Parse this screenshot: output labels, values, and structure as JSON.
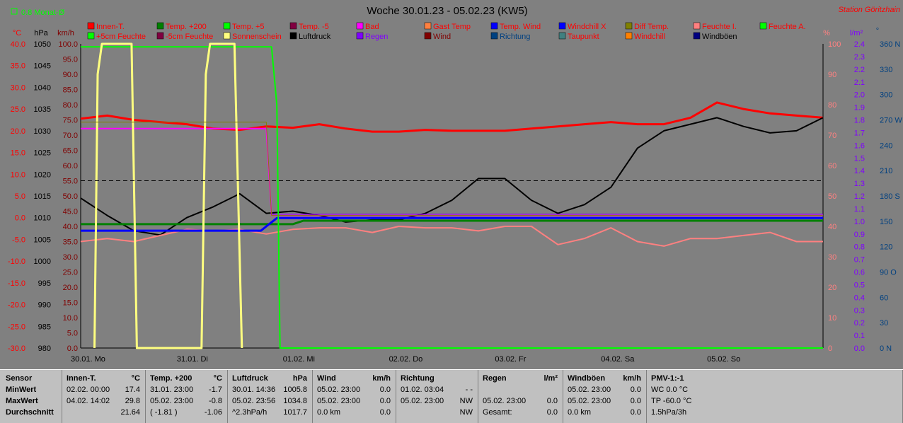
{
  "header": {
    "legend_left": "0.8 Monat-Ø",
    "title": "Woche 30.01.23 - 05.02.23 (KW5)",
    "station": "Station Göritzhain"
  },
  "colors": {
    "background": "#808080",
    "innen_temp": "#ff0000",
    "luftdruck": "#000000",
    "sonnenschein": "#ffff80",
    "feuchte_a": "#00ff00",
    "temp_wind": "#0000ff",
    "feuchte_i": "#ff8080",
    "temp_200": "#008000",
    "bad": "#ff00ff",
    "richtung": "#004080",
    "regen": "#8000ff"
  },
  "legend": [
    {
      "label": "Innen-T.",
      "color": "#ff0000",
      "text_color": "#ff0000"
    },
    {
      "label": "Temp. +200",
      "color": "#008000",
      "text_color": "#ff0000"
    },
    {
      "label": "Temp. +5",
      "color": "#00ff00",
      "text_color": "#ff0000"
    },
    {
      "label": "Temp. -5",
      "color": "#800040",
      "text_color": "#ff0000"
    },
    {
      "label": "Bad",
      "color": "#ff00ff",
      "text_color": "#ff0000"
    },
    {
      "label": "Gast Temp",
      "color": "#ff8040",
      "text_color": "#ff0000"
    },
    {
      "label": "Temp. Wind",
      "color": "#0000ff",
      "text_color": "#ff0000"
    },
    {
      "label": "Windchill X",
      "color": "#0000ff",
      "text_color": "#ff0000"
    },
    {
      "label": "Diff Temp.",
      "color": "#808000",
      "text_color": "#ff0000"
    },
    {
      "label": "Feuchte I.",
      "color": "#ff8080",
      "text_color": "#ff0000"
    },
    {
      "label": "Feuchte A.",
      "color": "#00ff00",
      "text_color": "#ff0000"
    },
    {
      "label": "+5cm Feuchte",
      "color": "#00ff00",
      "text_color": "#ff0000"
    },
    {
      "label": "-5cm Feuchte",
      "color": "#800040",
      "text_color": "#ff0000"
    },
    {
      "label": "Sonnenschein",
      "color": "#ffff80",
      "text_color": "#ff0000"
    },
    {
      "label": "Luftdruck",
      "color": "#000000",
      "text_color": "#000000"
    },
    {
      "label": "Regen",
      "color": "#8000ff",
      "text_color": "#8000ff"
    },
    {
      "label": "Wind",
      "color": "#800000",
      "text_color": "#800000"
    },
    {
      "label": "Richtung",
      "color": "#004080",
      "text_color": "#004080"
    },
    {
      "label": "Taupunkt",
      "color": "#408080",
      "text_color": "#ff0000"
    },
    {
      "label": "Windchill",
      "color": "#ff8000",
      "text_color": "#ff0000"
    },
    {
      "label": "Windböen",
      "color": "#000080",
      "text_color": "#000000"
    }
  ],
  "chart_data": {
    "type": "line",
    "x_ticks": [
      "30.01.  Mo",
      "31.01.  Di",
      "01.02.  Mi",
      "02.02.  Do",
      "03.02.  Fr",
      "04.02.  Sa",
      "05.02.  So"
    ],
    "axes": {
      "temp_c": {
        "unit": "°C",
        "min": -30,
        "max": 40,
        "ticks": [
          "40.0",
          "35.0",
          "30.0",
          "25.0",
          "20.0",
          "15.0",
          "10.0",
          "5.0",
          "0.0",
          "-5.0",
          "-10.0",
          "-15.0",
          "-20.0",
          "-25.0",
          "-30.0"
        ]
      },
      "pressure_hpa": {
        "unit": "hPa",
        "min": 980,
        "max": 1050,
        "ticks": [
          "1050",
          "1045",
          "1040",
          "1035",
          "1030",
          "1025",
          "1020",
          "1015",
          "1010",
          "1005",
          "1000",
          "995",
          "990",
          "985",
          "980"
        ]
      },
      "wind_kmh": {
        "unit": "km/h",
        "min": 0,
        "max": 100,
        "ticks": [
          "100.0",
          "95.0",
          "90.0",
          "85.0",
          "80.0",
          "75.0",
          "70.0",
          "65.0",
          "60.0",
          "55.0",
          "50.0",
          "45.0",
          "40.0",
          "35.0",
          "30.0",
          "25.0",
          "20.0",
          "15.0",
          "10.0",
          "5.0",
          "0.0"
        ]
      },
      "humidity_pct": {
        "unit": "%",
        "min": 0,
        "max": 100,
        "ticks": [
          "100",
          "90",
          "80",
          "70",
          "60",
          "50",
          "40",
          "30",
          "20",
          "10",
          "0"
        ]
      },
      "rain_lm2": {
        "unit": "l/m²",
        "min": 0,
        "max": 2.4,
        "ticks": [
          "2.4",
          "2.3",
          "2.2",
          "2.1",
          "2.0",
          "1.9",
          "1.8",
          "1.7",
          "1.6",
          "1.5",
          "1.4",
          "1.3",
          "1.2",
          "1.1",
          "1.0",
          "0.9",
          "0.8",
          "0.7",
          "0.6",
          "0.5",
          "0.4",
          "0.3",
          "0.2",
          "0.1",
          "0.0"
        ]
      },
      "direction": {
        "unit": "°",
        "min": 0,
        "max": 360,
        "ticks": [
          "360 N",
          "330",
          "300",
          "270 W",
          "240",
          "210",
          "180 S",
          "150",
          "120",
          "90 O",
          "60",
          "30",
          "0    N"
        ]
      }
    },
    "series": [
      {
        "name": "Innen-T.",
        "axis": "temp_c",
        "color": "#ff0000",
        "width": 3,
        "x": [
          0,
          0.25,
          0.5,
          0.75,
          1,
          1.25,
          1.5,
          1.75,
          2,
          2.25,
          2.5,
          2.75,
          3,
          3.25,
          3.5,
          3.75,
          4,
          4.25,
          4.5,
          4.75,
          5,
          5.25,
          5.5,
          5.75,
          6,
          6.25,
          6.5,
          6.75,
          7
        ],
        "y": [
          22.8,
          23.5,
          22.5,
          22,
          21.5,
          20.5,
          20.2,
          21,
          20.7,
          21.5,
          20.5,
          19.8,
          19.8,
          20.2,
          20,
          20,
          20,
          20.5,
          21,
          21.5,
          22,
          21.5,
          21.5,
          23,
          26.5,
          25,
          24,
          23.5,
          23
        ]
      },
      {
        "name": "Luftdruck",
        "axis": "pressure_hpa",
        "color": "#000000",
        "width": 2,
        "x": [
          0,
          0.25,
          0.5,
          0.75,
          1,
          1.25,
          1.5,
          1.75,
          2,
          2.25,
          2.5,
          2.75,
          3,
          3.25,
          3.5,
          3.75,
          4,
          4.25,
          4.5,
          4.75,
          5,
          5.25,
          5.5,
          5.75,
          6,
          6.25,
          6.5,
          6.75,
          7
        ],
        "y": [
          1014.5,
          1010.5,
          1007,
          1006,
          1010,
          1012.5,
          1015.5,
          1011,
          1011.5,
          1010.5,
          1009,
          1009.5,
          1009.5,
          1011,
          1014,
          1019,
          1019,
          1014,
          1011,
          1013,
          1017,
          1026,
          1030,
          1031.5,
          1033,
          1031,
          1029.5,
          1030,
          1033
        ]
      },
      {
        "name": "Feuchte I.",
        "axis": "humidity_pct",
        "color": "#ff8080",
        "width": 2,
        "x": [
          0,
          0.25,
          0.5,
          0.75,
          1,
          1.25,
          1.5,
          1.75,
          2,
          2.25,
          2.5,
          2.75,
          3,
          3.25,
          3.5,
          3.75,
          4,
          4.25,
          4.5,
          4.75,
          5,
          5.25,
          5.5,
          5.75,
          6,
          6.25,
          6.5,
          6.75,
          7
        ],
        "y": [
          35,
          36,
          35,
          37,
          39,
          38.5,
          39,
          37.5,
          39,
          39.5,
          39.5,
          38,
          40,
          39.5,
          39.5,
          38.5,
          40,
          40,
          34,
          36,
          39.5,
          35,
          33.5,
          36,
          36,
          37,
          38,
          35,
          35
        ]
      },
      {
        "name": "Temp. +200",
        "axis": "temp_c",
        "color": "#008000",
        "width": 3,
        "x": [
          0,
          2,
          2.1,
          7
        ],
        "y": [
          -1.5,
          -1.5,
          -0.7,
          -0.7
        ]
      },
      {
        "name": "Temp. Wind",
        "axis": "temp_c",
        "color": "#0000ff",
        "width": 3,
        "x": [
          0,
          1.7,
          1.75,
          1.85,
          7
        ],
        "y": [
          -3,
          -3,
          -2,
          -0.1,
          -0.1
        ]
      },
      {
        "name": "Bad",
        "axis": "temp_c",
        "color": "#ff00ff",
        "width": 2,
        "x": [
          0,
          1.75,
          1.8,
          7
        ],
        "y": [
          20.5,
          20.5,
          0.5,
          0.5
        ]
      },
      {
        "name": "Regen",
        "axis": "humidity_pct",
        "color": "#8000ff",
        "width": 1,
        "x": [
          1.8,
          7
        ],
        "y": [
          44,
          44
        ]
      },
      {
        "name": "Feuchte A.",
        "axis": "humidity_pct",
        "color": "#00ff00",
        "width": 2,
        "x": [
          0,
          1.8,
          1.85,
          1.88,
          7
        ],
        "y": [
          99,
          99,
          80,
          0,
          0
        ]
      },
      {
        "name": "Sonnenschein",
        "axis": "humidity_pct",
        "color": "#ffff80",
        "width": 3,
        "x": [
          0.13,
          0.16,
          0.2,
          0.48,
          0.53,
          1.14,
          1.18,
          1.22,
          1.45,
          1.52
        ],
        "y": [
          0,
          90,
          100,
          100,
          0,
          0,
          90,
          100,
          100,
          0
        ]
      },
      {
        "name": "Diff Temp.",
        "axis": "temp_c",
        "color": "#808000",
        "width": 1,
        "x": [
          0,
          1.75,
          1.8,
          7
        ],
        "y": [
          22,
          22,
          0.5,
          0.5
        ]
      },
      {
        "name": "0.8 Monat-Ø",
        "axis": "temp_c",
        "color": "#000000",
        "width": 1,
        "dashed": true,
        "x": [
          0,
          7
        ],
        "y": [
          8.5,
          8.5
        ]
      }
    ]
  },
  "table": {
    "columns": [
      {
        "rows": [
          [
            "Sensor",
            ""
          ],
          [
            "MinWert",
            ""
          ],
          [
            "MaxWert",
            ""
          ],
          [
            "Durchschnitt",
            ""
          ]
        ]
      },
      {
        "title": "Innen-T.",
        "unit": "°C",
        "rows": [
          [
            "02.02.  00:00",
            "17.4"
          ],
          [
            "04.02.  14:02",
            "29.8"
          ],
          [
            "",
            "21.64"
          ]
        ]
      },
      {
        "title": "Temp. +200",
        "unit": "°C",
        "rows": [
          [
            "31.01.  23:00",
            "-1.7"
          ],
          [
            "05.02.  23:00",
            "-0.8"
          ],
          [
            "( -1.81 )",
            "-1.06"
          ]
        ]
      },
      {
        "title": "Luftdruck",
        "unit": "hPa",
        "rows": [
          [
            "30.01.  14:36",
            "1005.8"
          ],
          [
            "05.02.  23:56",
            "1034.8"
          ],
          [
            "^2.3hPa/h",
            "1017.7"
          ]
        ]
      },
      {
        "title": "Wind",
        "unit": "km/h",
        "rows": [
          [
            "05.02.  23:00",
            "0.0"
          ],
          [
            "05.02.  23:00",
            "0.0"
          ],
          [
            "0.0 km",
            "0.0"
          ]
        ]
      },
      {
        "title": "Richtung",
        "unit": "",
        "rows": [
          [
            "01.02.  03:04",
            "- -"
          ],
          [
            "05.02.  23:00",
            "NW"
          ],
          [
            "",
            "NW"
          ]
        ]
      },
      {
        "title": "Regen",
        "unit": "l/m²",
        "rows": [
          [
            "",
            ""
          ],
          [
            "05.02.  23:00",
            "0.0"
          ],
          [
            "Gesamt:",
            "0.0"
          ]
        ]
      },
      {
        "title": "Windböen",
        "unit": "km/h",
        "rows": [
          [
            "05.02.  23:00",
            "0.0"
          ],
          [
            "05.02.  23:00",
            "0.0"
          ],
          [
            "0.0 km",
            "0.0"
          ]
        ]
      },
      {
        "title": "PMV-1:-1",
        "unit": "",
        "rows": [
          [
            "WC 0.0 °C",
            ""
          ],
          [
            "TP -60.0 °C",
            ""
          ],
          [
            "1.5hPa/3h",
            ""
          ]
        ]
      }
    ]
  }
}
